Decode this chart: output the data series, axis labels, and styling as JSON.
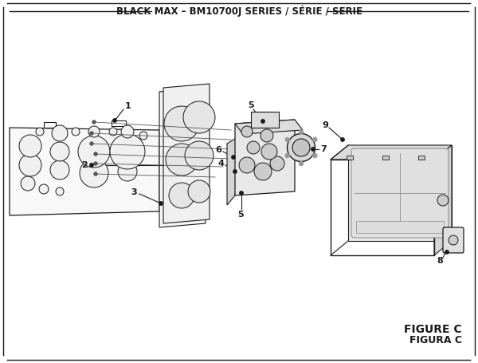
{
  "title": "BLACK MAX – BM10700J SERIES / SÉRIE / SERIE",
  "figure_label": "FIGURE C",
  "figure_label2": "FIGURA C",
  "bg_color": "#ffffff",
  "border_color": "#1a1a1a",
  "text_color": "#1a1a1a",
  "title_fontsize": 8.5,
  "label_fontsize": 8,
  "figure_label_fontsize": 9
}
